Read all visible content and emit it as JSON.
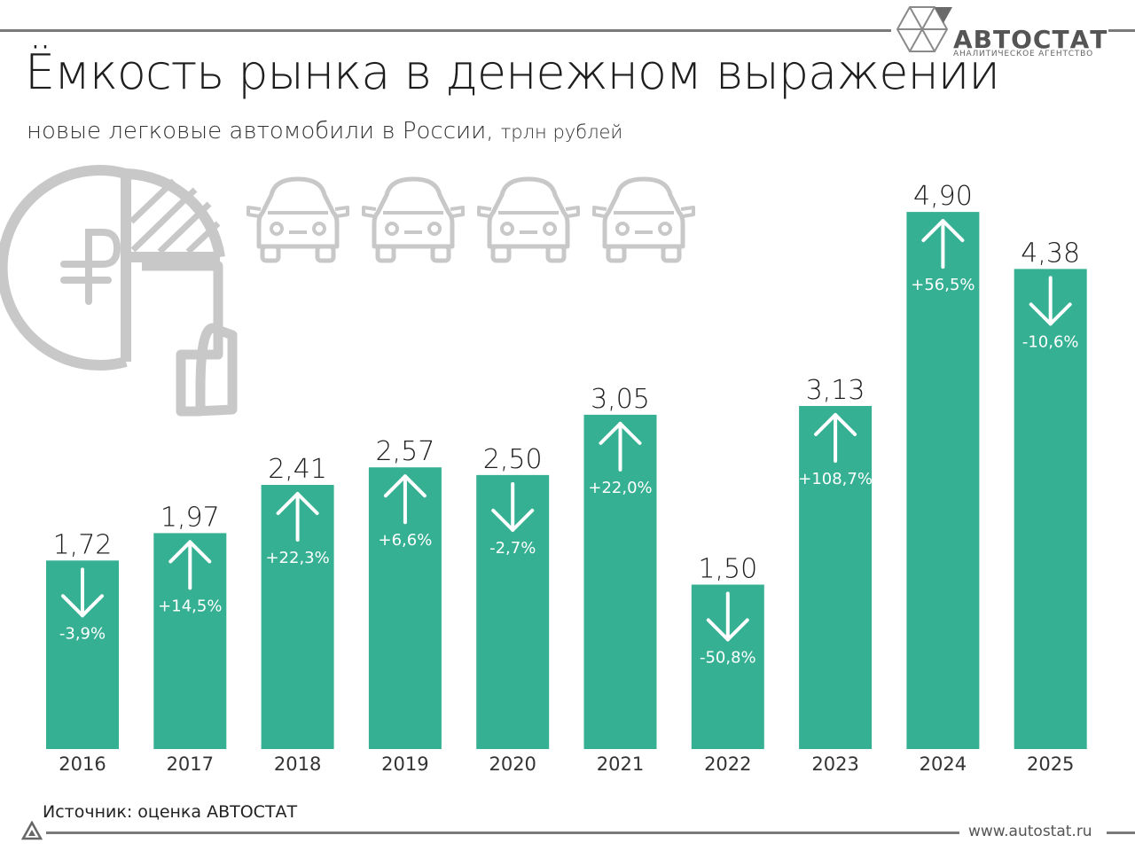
{
  "header": {
    "title": "Ёмкость рынка в денежном выражении",
    "subtitle": "новые легковые автомобили в России,",
    "unit": "трлн рублей"
  },
  "brand": {
    "name": "АВТОСТАТ",
    "tagline": "АНАЛИТИЧЕСКОЕ АГЕНТСТВО",
    "website": "www.autostat.ru"
  },
  "footer": {
    "source": "Источник: оценка АВТОСТАТ"
  },
  "icons": [
    "ruble-pie-hand-icon",
    "car-icon",
    "arrow-up-icon",
    "arrow-down-icon",
    "autostat-logo-icon"
  ],
  "colors": {
    "bar": "#36b093",
    "illustration": "#c8c8c8",
    "rule": "#7a7a7a"
  },
  "chart_data": {
    "type": "bar",
    "categories": [
      "2016",
      "2017",
      "2018",
      "2019",
      "2020",
      "2021",
      "2022",
      "2023",
      "2024",
      "2025"
    ],
    "values": [
      1.72,
      1.97,
      2.41,
      2.57,
      2.5,
      3.05,
      1.5,
      3.13,
      4.9,
      4.38
    ],
    "value_labels": [
      "1,72",
      "1,97",
      "2,41",
      "2,57",
      "2,50",
      "3,05",
      "1,50",
      "3,13",
      "4,90",
      "4,38"
    ],
    "change_pct": [
      -3.9,
      14.5,
      22.3,
      6.6,
      -2.7,
      22.0,
      -50.8,
      108.7,
      56.5,
      -10.6
    ],
    "change_labels": [
      "-3,9%",
      "+14,5%",
      "+22,3%",
      "+6,6%",
      "-2,7%",
      "+22,0%",
      "-50,8%",
      "+108,7%",
      "+56,5%",
      "-10,6%"
    ],
    "ylim": [
      0,
      5.2
    ],
    "grid": false,
    "legend": "none",
    "bar_color": "#36b093"
  }
}
